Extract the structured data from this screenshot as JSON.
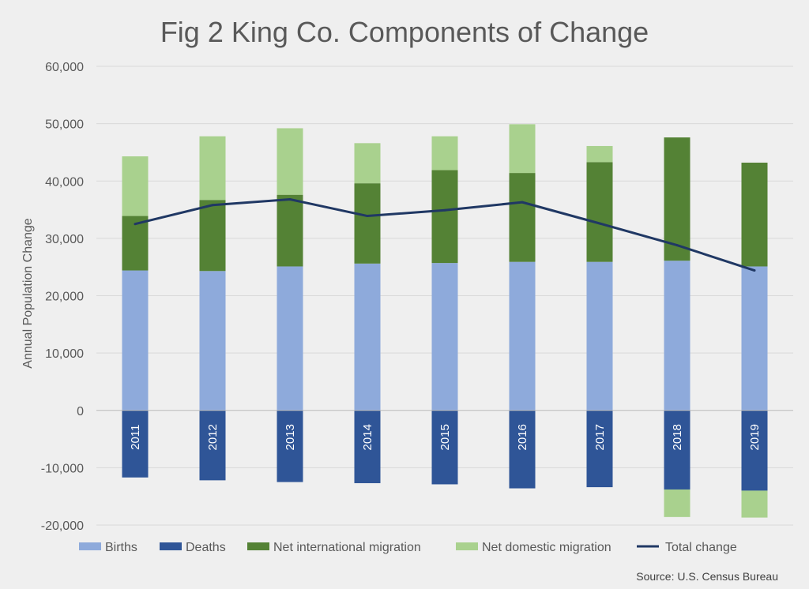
{
  "chart_data": {
    "type": "bar",
    "title": "Fig 2 King Co. Components of Change",
    "ylabel": "Annual Population Change",
    "xlabel": "",
    "ylim": [
      -20000,
      60000
    ],
    "yticks": [
      60000,
      50000,
      40000,
      30000,
      20000,
      10000,
      0,
      -10000,
      -20000
    ],
    "ytick_labels": [
      "60,000",
      "50,000",
      "40,000",
      "30,000",
      "20,000",
      "10,000",
      "0",
      "-10,000",
      "-20,000"
    ],
    "stacked": true,
    "grid": true,
    "legend_position": "bottom",
    "categories": [
      "2011",
      "2012",
      "2013",
      "2014",
      "2015",
      "2016",
      "2017",
      "2018",
      "2019"
    ],
    "series": [
      {
        "name": "Births",
        "kind": "bar",
        "color": "#8eaadb",
        "values": [
          24400,
          24300,
          25100,
          25600,
          25700,
          25900,
          25900,
          26100,
          25100
        ]
      },
      {
        "name": "Deaths",
        "kind": "bar",
        "color": "#2f5597",
        "values": [
          -11700,
          -12200,
          -12500,
          -12700,
          -12900,
          -13600,
          -13400,
          -13800,
          -14000
        ]
      },
      {
        "name": "Net international migration",
        "kind": "bar",
        "color": "#548235",
        "values": [
          9500,
          12400,
          12500,
          14000,
          16200,
          15500,
          17400,
          21500,
          18100
        ]
      },
      {
        "name": "Net domestic migration",
        "kind": "bar",
        "color": "#a9d18e",
        "values": [
          10400,
          11100,
          11600,
          7000,
          5900,
          8500,
          2800,
          -4800,
          -4700
        ]
      },
      {
        "name": "Total change",
        "kind": "line",
        "color": "#203864",
        "values": [
          32500,
          35800,
          36800,
          33900,
          34900,
          36300,
          32600,
          28800,
          24400
        ]
      }
    ],
    "source": "Source: U.S. Census Bureau"
  }
}
